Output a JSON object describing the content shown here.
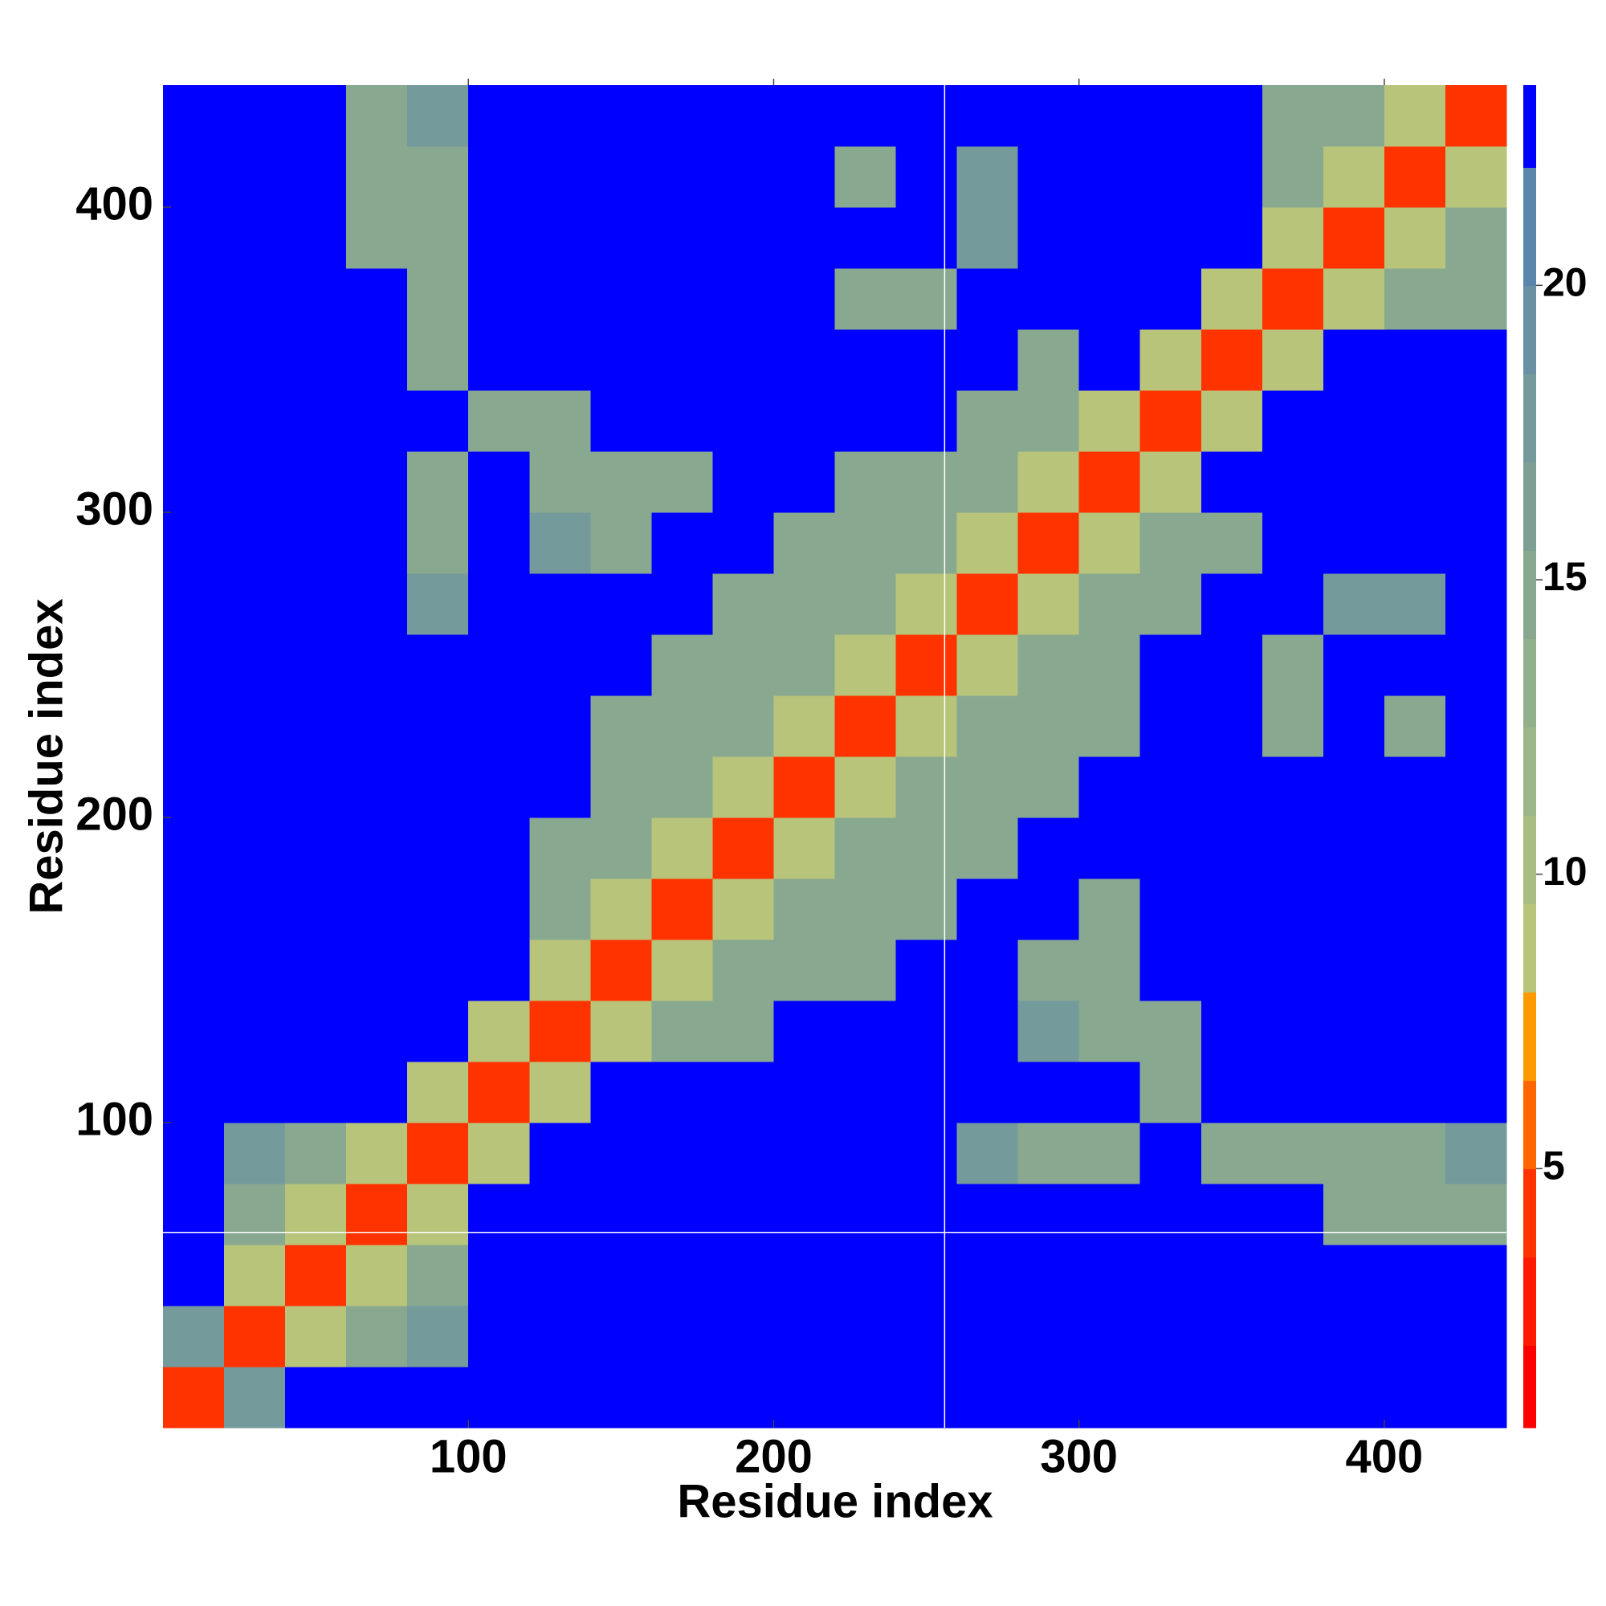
{
  "chart_data": {
    "type": "heatmap",
    "x_label": "Residue index",
    "y_label": "Residue index",
    "xlim": [
      0,
      440
    ],
    "ylim": [
      0,
      440
    ],
    "xticks": [
      100,
      200,
      300,
      400
    ],
    "yticks": [
      100,
      200,
      300,
      400
    ],
    "x_bins": [
      0,
      20,
      40,
      60,
      80,
      100,
      120,
      140,
      160,
      180,
      200,
      220,
      240,
      260,
      280,
      300,
      320,
      340,
      360,
      380,
      400,
      420,
      440
    ],
    "y_bins": [
      0,
      20,
      40,
      60,
      80,
      100,
      120,
      140,
      160,
      180,
      200,
      220,
      240,
      260,
      280,
      300,
      320,
      340,
      360,
      380,
      400,
      420,
      440
    ],
    "z": [
      [
        4,
        18,
        23,
        23,
        23,
        23,
        23,
        23,
        23,
        23,
        23,
        23,
        23,
        23,
        23,
        23,
        23,
        23,
        23,
        23,
        23,
        23
      ],
      [
        18,
        4,
        9,
        14,
        18,
        23,
        23,
        23,
        23,
        23,
        23,
        23,
        23,
        23,
        23,
        23,
        23,
        23,
        23,
        23,
        23,
        23
      ],
      [
        23,
        9,
        4,
        9,
        14,
        23,
        23,
        23,
        23,
        23,
        23,
        23,
        23,
        23,
        23,
        23,
        23,
        23,
        23,
        23,
        23,
        23
      ],
      [
        23,
        14,
        9,
        4,
        9,
        23,
        23,
        23,
        23,
        23,
        23,
        23,
        23,
        23,
        23,
        23,
        23,
        23,
        23,
        14,
        14,
        14
      ],
      [
        23,
        18,
        14,
        9,
        4,
        9,
        23,
        23,
        23,
        23,
        23,
        23,
        23,
        18,
        14,
        14,
        23,
        14,
        14,
        14,
        14,
        18
      ],
      [
        23,
        23,
        23,
        23,
        9,
        4,
        9,
        23,
        23,
        23,
        23,
        23,
        23,
        23,
        23,
        23,
        14,
        23,
        23,
        23,
        23,
        23
      ],
      [
        23,
        23,
        23,
        23,
        23,
        9,
        4,
        9,
        14,
        14,
        23,
        23,
        23,
        23,
        18,
        14,
        14,
        23,
        23,
        23,
        23,
        23
      ],
      [
        23,
        23,
        23,
        23,
        23,
        23,
        9,
        4,
        9,
        14,
        14,
        14,
        23,
        23,
        14,
        14,
        23,
        23,
        23,
        23,
        23,
        23
      ],
      [
        23,
        23,
        23,
        23,
        23,
        23,
        14,
        9,
        4,
        9,
        14,
        14,
        14,
        23,
        23,
        14,
        23,
        23,
        23,
        23,
        23,
        23
      ],
      [
        23,
        23,
        23,
        23,
        23,
        23,
        14,
        14,
        9,
        4,
        9,
        14,
        14,
        14,
        23,
        23,
        23,
        23,
        23,
        23,
        23,
        23
      ],
      [
        23,
        23,
        23,
        23,
        23,
        23,
        23,
        14,
        14,
        9,
        4,
        9,
        14,
        14,
        14,
        23,
        23,
        23,
        23,
        23,
        23,
        23
      ],
      [
        23,
        23,
        23,
        23,
        23,
        23,
        23,
        14,
        14,
        14,
        9,
        4,
        9,
        14,
        14,
        14,
        23,
        23,
        14,
        23,
        14,
        23
      ],
      [
        23,
        23,
        23,
        23,
        23,
        23,
        23,
        23,
        14,
        14,
        14,
        9,
        4,
        9,
        14,
        14,
        23,
        23,
        14,
        23,
        23,
        23
      ],
      [
        23,
        23,
        23,
        23,
        18,
        23,
        23,
        23,
        23,
        14,
        14,
        14,
        9,
        4,
        9,
        14,
        14,
        23,
        23,
        18,
        18,
        23
      ],
      [
        23,
        23,
        23,
        23,
        14,
        23,
        18,
        14,
        23,
        23,
        14,
        14,
        14,
        9,
        4,
        9,
        14,
        14,
        23,
        23,
        23,
        23
      ],
      [
        23,
        23,
        23,
        23,
        14,
        23,
        14,
        14,
        14,
        23,
        23,
        14,
        14,
        14,
        9,
        4,
        9,
        23,
        23,
        23,
        23,
        23
      ],
      [
        23,
        23,
        23,
        23,
        23,
        14,
        14,
        23,
        23,
        23,
        23,
        23,
        23,
        14,
        14,
        9,
        4,
        9,
        23,
        23,
        23,
        23
      ],
      [
        23,
        23,
        23,
        23,
        14,
        23,
        23,
        23,
        23,
        23,
        23,
        23,
        23,
        23,
        14,
        23,
        9,
        4,
        9,
        23,
        23,
        23
      ],
      [
        23,
        23,
        23,
        23,
        14,
        23,
        23,
        23,
        23,
        23,
        23,
        14,
        14,
        23,
        23,
        23,
        23,
        9,
        4,
        9,
        14,
        14
      ],
      [
        23,
        23,
        23,
        14,
        14,
        23,
        23,
        23,
        23,
        23,
        23,
        23,
        23,
        18,
        23,
        23,
        23,
        23,
        9,
        4,
        9,
        14
      ],
      [
        23,
        23,
        23,
        14,
        14,
        23,
        23,
        23,
        23,
        23,
        23,
        14,
        23,
        18,
        23,
        23,
        23,
        23,
        14,
        9,
        4,
        9
      ],
      [
        23,
        23,
        23,
        14,
        18,
        23,
        23,
        23,
        23,
        23,
        23,
        23,
        23,
        23,
        23,
        23,
        23,
        23,
        14,
        14,
        9,
        4
      ]
    ],
    "colorbar": {
      "lim": [
        0.6,
        23.4
      ],
      "ticks": [
        5,
        10,
        15,
        20
      ],
      "levels": [
        0.6,
        2,
        3.5,
        5,
        6.5,
        8,
        9.5,
        11,
        12.5,
        14,
        15.5,
        17,
        18.5,
        20,
        22,
        23.4
      ],
      "colors": [
        "#ff0000",
        "#ff1a00",
        "#ff3300",
        "#ff6600",
        "#ff9900",
        "#b8c47a",
        "#a8bd82",
        "#9cb888",
        "#92b08c",
        "#88a890",
        "#7ea094",
        "#749a9c",
        "#6a90a4",
        "#5a86ac",
        "#0000ff"
      ]
    },
    "crosshair": {
      "x": 256,
      "y": 64,
      "color": "#ffffff"
    }
  }
}
